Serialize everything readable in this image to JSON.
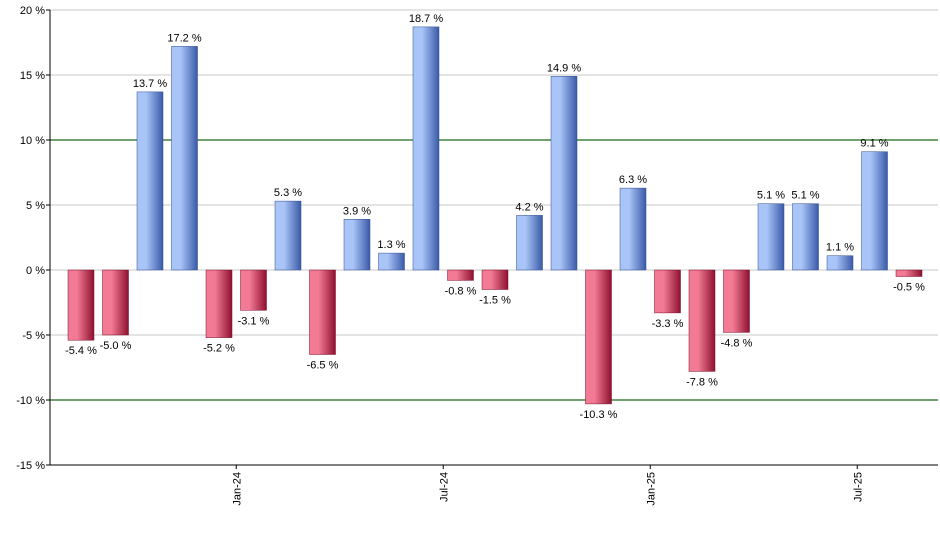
{
  "chart_data": {
    "type": "bar",
    "title": "",
    "xlabel": "",
    "ylabel": "",
    "ylim": [
      -15,
      20
    ],
    "y_ticks": [
      -15,
      -10,
      -5,
      0,
      5,
      10,
      15,
      20
    ],
    "y_tick_suffix": " %",
    "value_suffix": " %",
    "grid": true,
    "highlight_lines": [
      10,
      -10
    ],
    "x_tick_labels": [
      {
        "label": "Jan-24",
        "after_bar_index": 4
      },
      {
        "label": "Jul-24",
        "after_bar_index": 10
      },
      {
        "label": "Jan-25",
        "after_bar_index": 16
      },
      {
        "label": "Jul-25",
        "after_bar_index": 22
      }
    ],
    "values": [
      -5.4,
      -5.0,
      13.7,
      17.2,
      -5.2,
      -3.1,
      5.3,
      -6.5,
      3.9,
      1.3,
      18.7,
      -0.8,
      -1.5,
      4.2,
      14.9,
      -10.3,
      6.3,
      -3.3,
      -7.8,
      -4.8,
      5.1,
      5.1,
      1.1,
      9.1,
      -0.5
    ],
    "labels": [
      "-5.4 %",
      "-5.0 %",
      "13.7 %",
      "17.2 %",
      "-5.2 %",
      "-3.1 %",
      "5.3 %",
      "-6.5 %",
      "3.9 %",
      "1.3 %",
      "18.7 %",
      "-0.8 %",
      "-1.5 %",
      "4.2 %",
      "14.9 %",
      "-10.3 %",
      "6.3 %",
      "-3.3 %",
      "-7.8 %",
      "-4.8 %",
      "5.1 %",
      "5.1 %",
      "1.1 %",
      "9.1 %",
      "-0.5 %"
    ],
    "colors": {
      "positive_light": "#a9c4f7",
      "positive_dark": "#3a5aa8",
      "negative_light": "#f27a94",
      "negative_dark": "#8e1030",
      "grid": "#c8c8c8",
      "highlight": "#1a6b1a",
      "axis": "#000000"
    }
  }
}
